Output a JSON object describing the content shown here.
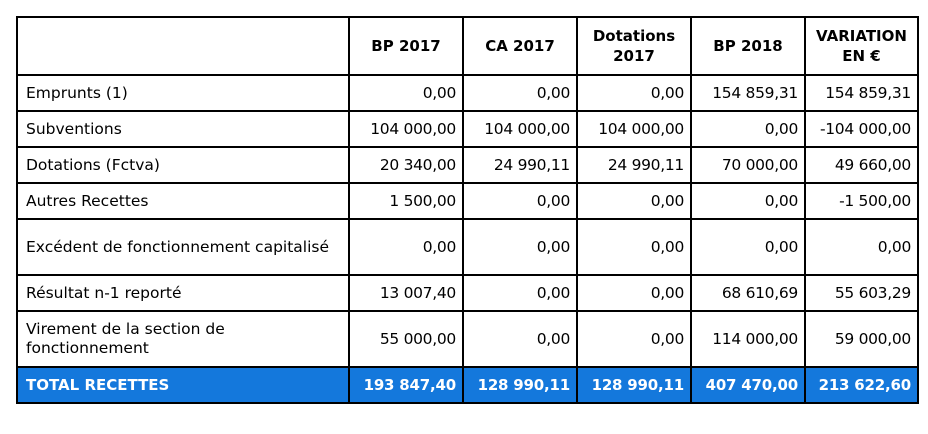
{
  "colors": {
    "total_row_background": "#1478dc",
    "total_row_text": "#ffffff",
    "border": "#000000"
  },
  "table": {
    "headers": [
      "",
      "BP 2017",
      "CA 2017",
      "Dotations\n2017",
      "BP 2018",
      "VARIATION\nEN €"
    ],
    "rows": [
      {
        "label": "Emprunts (1)",
        "values": [
          "0,00",
          "0,00",
          "0,00",
          "154 859,31",
          "154 859,31"
        ]
      },
      {
        "label": "Subventions",
        "values": [
          "104 000,00",
          "104 000,00",
          "104 000,00",
          "0,00",
          "-104 000,00"
        ]
      },
      {
        "label": "Dotations (Fctva)",
        "values": [
          "20 340,00",
          "24 990,11",
          "24 990,11",
          "70 000,00",
          "49 660,00"
        ]
      },
      {
        "label": "Autres Recettes",
        "values": [
          "1 500,00",
          "0,00",
          "0,00",
          "0,00",
          "-1 500,00"
        ]
      },
      {
        "label": "Excédent de fonctionnement capitalisé",
        "values": [
          "0,00",
          "0,00",
          "0,00",
          "0,00",
          "0,00"
        ]
      },
      {
        "label": "Résultat n-1 reporté",
        "values": [
          "13 007,40",
          "0,00",
          "0,00",
          "68 610,69",
          "55 603,29"
        ]
      },
      {
        "label": "Virement de la section de fonctionnement",
        "values": [
          "55 000,00",
          "0,00",
          "0,00",
          "114 000,00",
          "59 000,00"
        ]
      }
    ],
    "total": {
      "label": "TOTAL RECETTES",
      "values": [
        "193 847,40",
        "128 990,11",
        "128 990,11",
        "407 470,00",
        "213 622,60"
      ]
    }
  }
}
